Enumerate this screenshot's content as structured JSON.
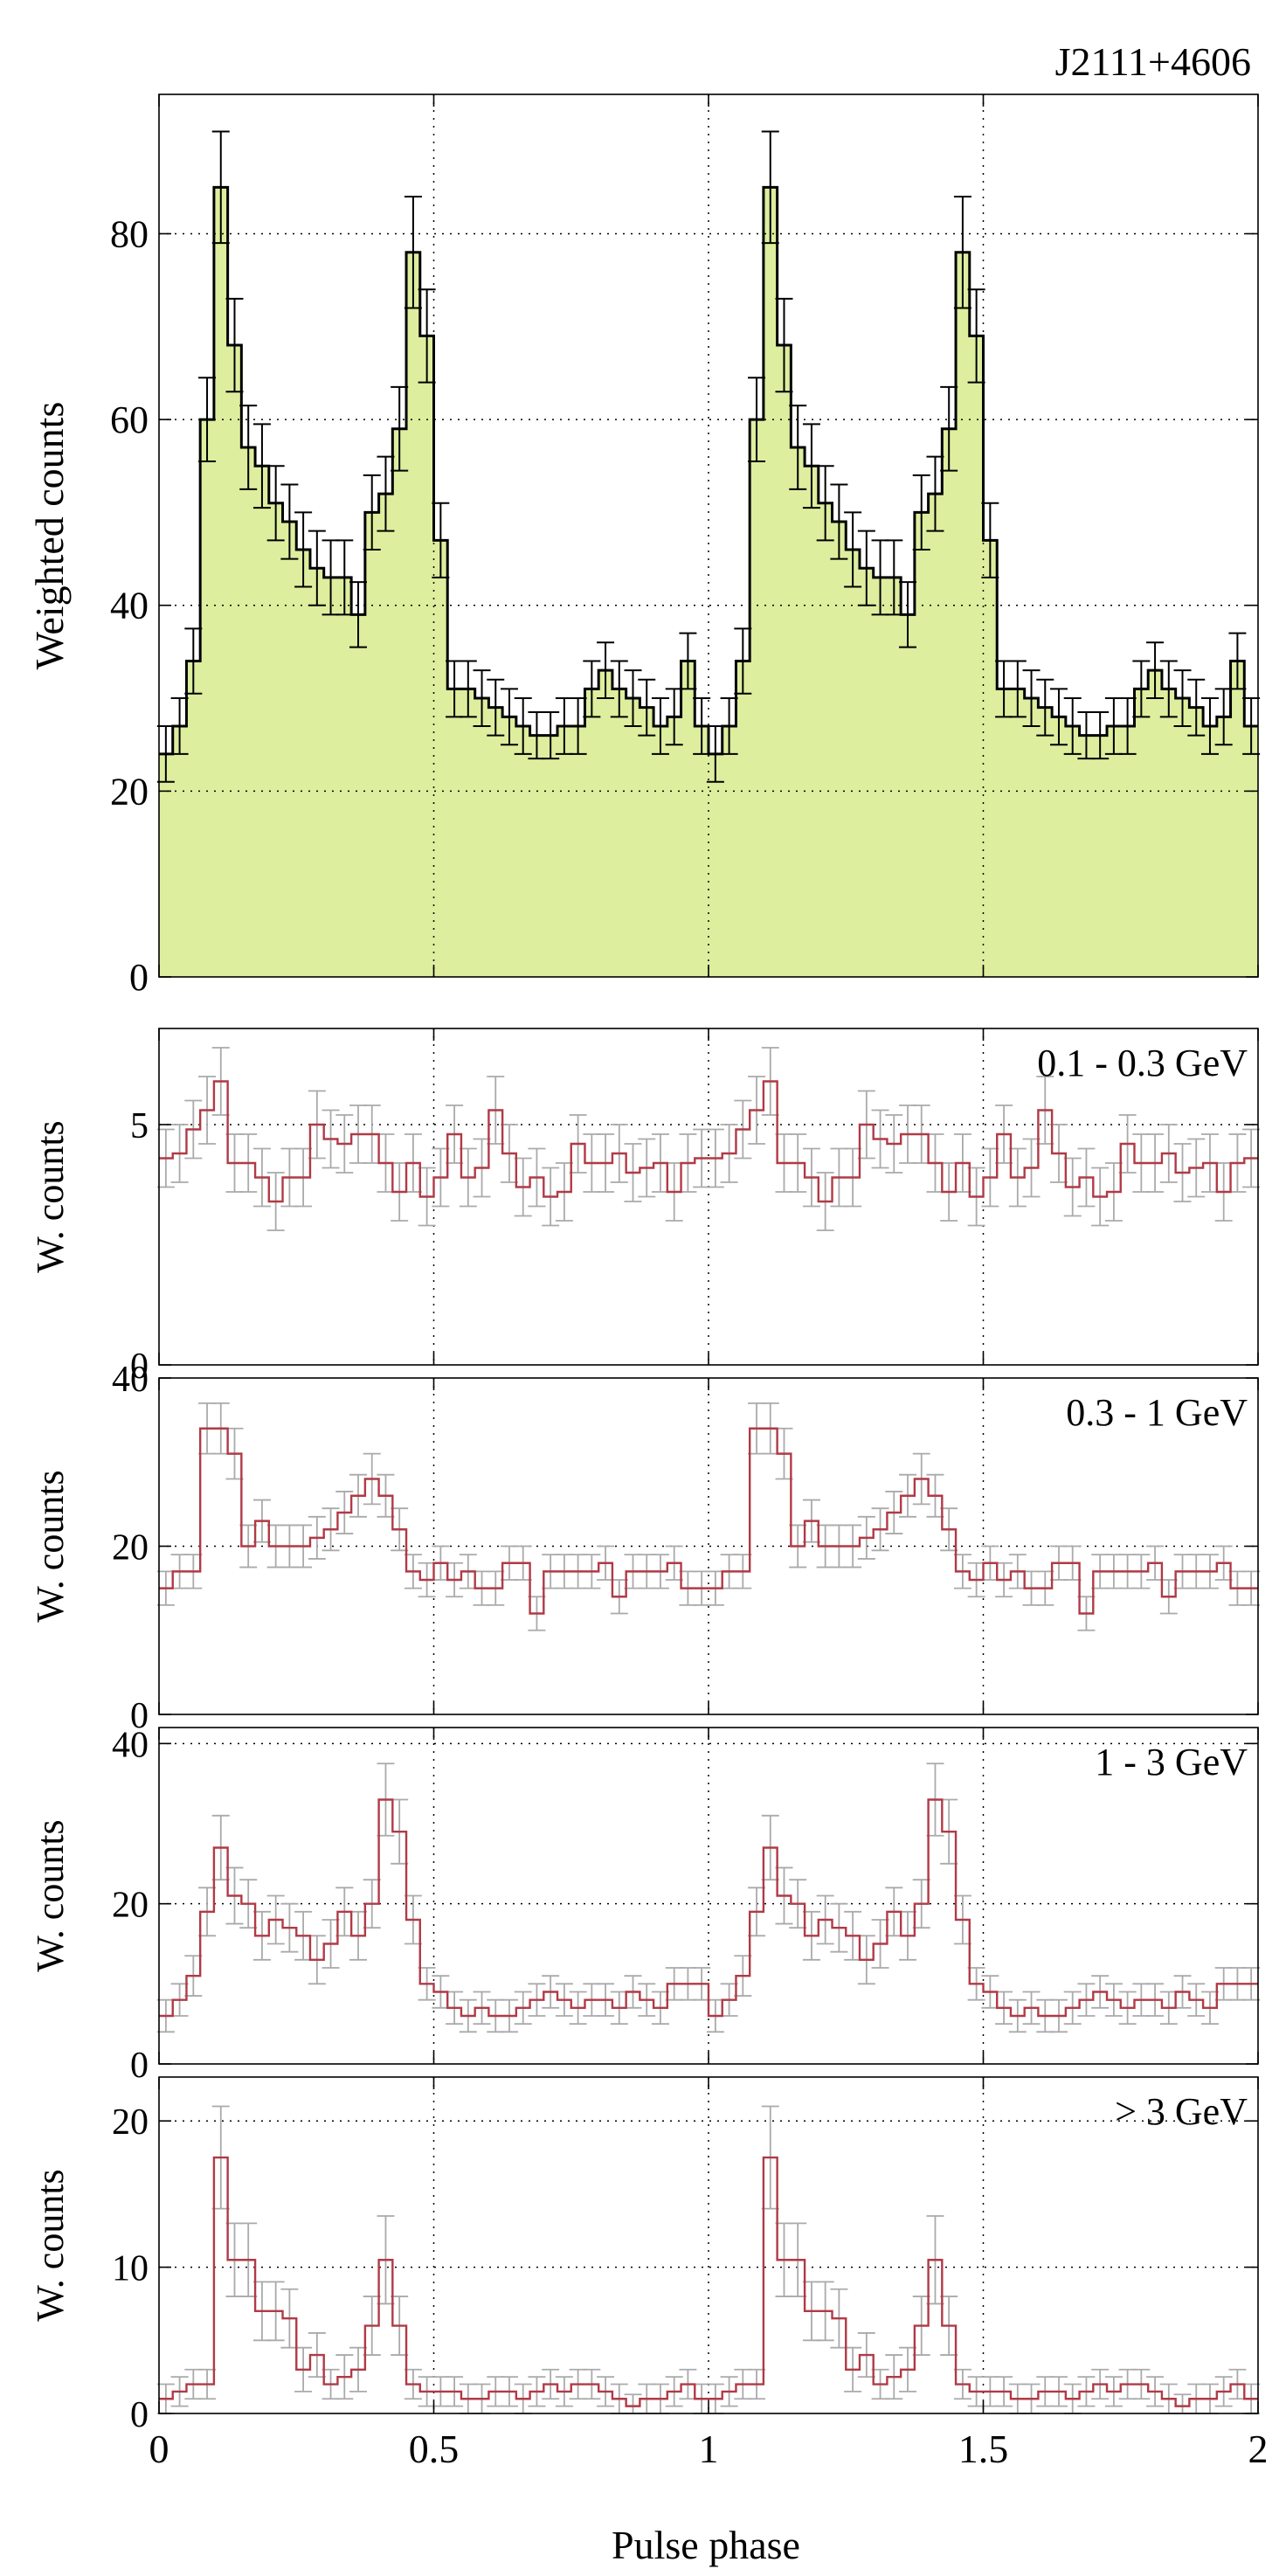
{
  "figure": {
    "source_name": "J2111+4606",
    "xlabel": "Pulse phase"
  },
  "colors": {
    "fill": "#DDEE9E",
    "total_line": "#000000",
    "band_line": "#B03A46",
    "band_error": "#AAAAAA",
    "grid": "#000000"
  },
  "chart_data": [
    {
      "type": "bar",
      "style": "step-histogram",
      "panel": "total",
      "title": "J2111+4606",
      "label": "",
      "xlabel": "Pulse phase",
      "ylabel": "Weighted counts",
      "xlim": [
        0,
        2
      ],
      "ylim": [
        0,
        95
      ],
      "yticks": [
        0,
        20,
        40,
        60,
        80
      ],
      "xticks": [
        0,
        0.5,
        1,
        1.5,
        2
      ],
      "bins_per_cycle": 40,
      "cycles": 2,
      "values": [
        24,
        27,
        34,
        60,
        85,
        68,
        57,
        55,
        51,
        49,
        46,
        44,
        43,
        43,
        39,
        50,
        52,
        59,
        78,
        69,
        47,
        31,
        31,
        30,
        29,
        28,
        27,
        26,
        26,
        27,
        27,
        31,
        33,
        31,
        30,
        29,
        27,
        28,
        34,
        27
      ],
      "errors": [
        3,
        3,
        3.5,
        4.5,
        6,
        5,
        4.5,
        4.5,
        4,
        4,
        4,
        4,
        4,
        4,
        3.5,
        4,
        4,
        4.5,
        6,
        5,
        4,
        3,
        3,
        3,
        3,
        3,
        3,
        2.5,
        2.5,
        3,
        3,
        3,
        3,
        3,
        3,
        3,
        3,
        3,
        3,
        3
      ]
    },
    {
      "type": "bar",
      "style": "step-histogram",
      "panel": "band-1",
      "label": "0.1 - 0.3 GeV",
      "xlabel": "Pulse phase",
      "ylabel": "W. counts",
      "xlim": [
        0,
        2
      ],
      "ylim": [
        0,
        7
      ],
      "yticks": [
        0,
        5
      ],
      "xticks": [
        0,
        0.5,
        1,
        1.5,
        2
      ],
      "bins_per_cycle": 40,
      "cycles": 2,
      "values": [
        4.3,
        4.4,
        4.9,
        5.3,
        5.9,
        4.2,
        4.2,
        3.9,
        3.4,
        3.9,
        3.9,
        5.0,
        4.7,
        4.6,
        4.8,
        4.8,
        4.2,
        3.6,
        4.2,
        3.5,
        3.9,
        4.8,
        3.9,
        4.1,
        5.3,
        4.4,
        3.7,
        3.9,
        3.5,
        3.6,
        4.6,
        4.2,
        4.2,
        4.4,
        4.0,
        4.1,
        4.2,
        3.6,
        4.2,
        4.3
      ],
      "errors": [
        0.6,
        0.6,
        0.6,
        0.7,
        0.7,
        0.6,
        0.6,
        0.6,
        0.6,
        0.6,
        0.6,
        0.7,
        0.6,
        0.6,
        0.6,
        0.6,
        0.6,
        0.6,
        0.6,
        0.6,
        0.6,
        0.6,
        0.6,
        0.6,
        0.7,
        0.6,
        0.6,
        0.6,
        0.6,
        0.6,
        0.6,
        0.6,
        0.6,
        0.6,
        0.6,
        0.6,
        0.6,
        0.6,
        0.6,
        0.6
      ]
    },
    {
      "type": "bar",
      "style": "step-histogram",
      "panel": "band-2",
      "label": "0.3 - 1 GeV",
      "xlabel": "Pulse phase",
      "ylabel": "W. counts",
      "xlim": [
        0,
        2
      ],
      "ylim": [
        0,
        40
      ],
      "yticks": [
        0,
        20,
        40
      ],
      "xticks": [
        0,
        0.5,
        1,
        1.5,
        2
      ],
      "bins_per_cycle": 40,
      "cycles": 2,
      "values": [
        15,
        17,
        17,
        34,
        34,
        31,
        20,
        23,
        20,
        20,
        20,
        21,
        22,
        24,
        26,
        28,
        26,
        22,
        17,
        16,
        18,
        16,
        17,
        15,
        15,
        18,
        18,
        12,
        17,
        17,
        17,
        17,
        18,
        14,
        17,
        17,
        17,
        18,
        15,
        15
      ],
      "errors": [
        2,
        2,
        2,
        3,
        3,
        3,
        2.5,
        2.5,
        2.5,
        2.5,
        2.5,
        2.5,
        2.5,
        2.5,
        2.5,
        3,
        2.5,
        2.5,
        2,
        2,
        2,
        2,
        2,
        2,
        2,
        2,
        2,
        2,
        2,
        2,
        2,
        2,
        2,
        2,
        2,
        2,
        2,
        2,
        2,
        2
      ]
    },
    {
      "type": "bar",
      "style": "step-histogram",
      "panel": "band-3",
      "label": "1 - 3 GeV",
      "xlabel": "Pulse phase",
      "ylabel": "W. counts",
      "xlim": [
        0,
        2
      ],
      "ylim": [
        0,
        42
      ],
      "yticks": [
        0,
        20,
        40
      ],
      "xticks": [
        0,
        0.5,
        1,
        1.5,
        2
      ],
      "bins_per_cycle": 40,
      "cycles": 2,
      "values": [
        6,
        8,
        11,
        19,
        27,
        21,
        20,
        16,
        18,
        17,
        16,
        13,
        15,
        19,
        16,
        20,
        33,
        29,
        18,
        10,
        9,
        7,
        6,
        7,
        6,
        6,
        7,
        8,
        9,
        8,
        7,
        8,
        8,
        7,
        9,
        8,
        7,
        10,
        10,
        10
      ],
      "errors": [
        2,
        2,
        2.5,
        3,
        4,
        3.5,
        3,
        3,
        3,
        3,
        3,
        3,
        3,
        3,
        3,
        3,
        4.5,
        4,
        3,
        2,
        2,
        2,
        2,
        2,
        2,
        2,
        2,
        2,
        2,
        2,
        2,
        2,
        2,
        2,
        2,
        2,
        2,
        2,
        2,
        2
      ]
    },
    {
      "type": "bar",
      "style": "step-histogram",
      "panel": "band-4",
      "label": "> 3 GeV",
      "xlabel": "Pulse phase",
      "ylabel": "W. counts",
      "xlim": [
        0,
        2
      ],
      "ylim": [
        0,
        23
      ],
      "yticks": [
        0,
        10,
        20
      ],
      "xticks": [
        0,
        0.5,
        1,
        1.5,
        2
      ],
      "bins_per_cycle": 40,
      "cycles": 2,
      "values": [
        1,
        1.5,
        2,
        2,
        17.5,
        10.5,
        10.5,
        7,
        7,
        6.5,
        3,
        4,
        2,
        2.5,
        3,
        6,
        10.5,
        6,
        2,
        1.5,
        1.5,
        1.5,
        1,
        1,
        1.5,
        1.5,
        1,
        1.5,
        2,
        1.5,
        2,
        2,
        1.5,
        1,
        0.5,
        1,
        1,
        1.5,
        2,
        1
      ],
      "errors": [
        1,
        1,
        1,
        1,
        3.5,
        2.5,
        2.5,
        2,
        2,
        2,
        1.5,
        1.5,
        1,
        1.5,
        1.5,
        2,
        3,
        2,
        1,
        1,
        1,
        1,
        1,
        1,
        1,
        1,
        1,
        1,
        1,
        1,
        1,
        1,
        1,
        1,
        0.8,
        1,
        1,
        1,
        1,
        1
      ]
    }
  ]
}
